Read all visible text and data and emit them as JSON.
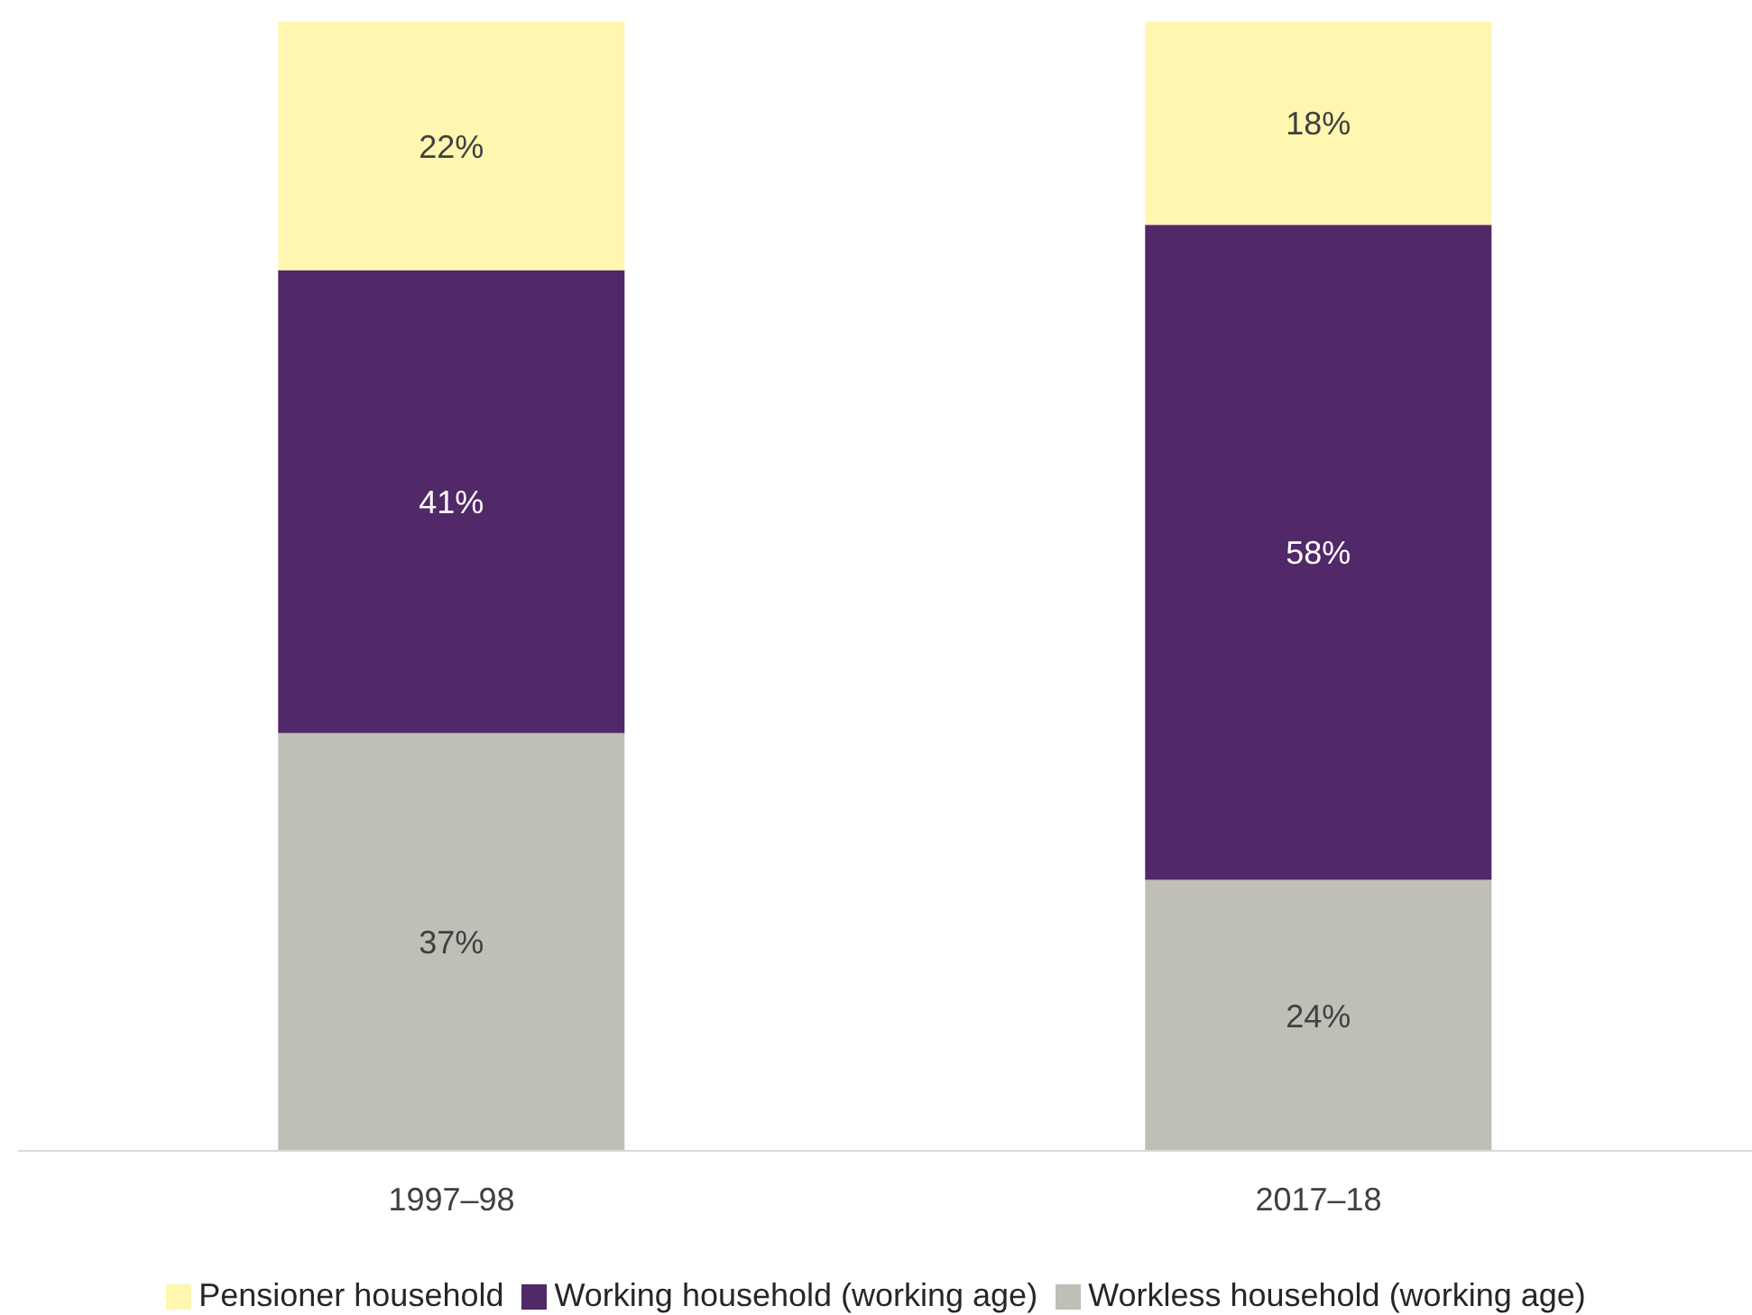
{
  "chart_data": {
    "type": "bar",
    "stacked": true,
    "categories": [
      "1997–98",
      "2017–18"
    ],
    "series": [
      {
        "name": "Workless household (working age)",
        "color": "#bfbfb7",
        "values": [
          37,
          24
        ],
        "value_labels": [
          "37%",
          "24%"
        ]
      },
      {
        "name": "Working household (working age)",
        "color": "#512868",
        "values": [
          41,
          58
        ],
        "value_labels": [
          "41%",
          "58%"
        ]
      },
      {
        "name": "Pensioner household",
        "color": "#fff6b0",
        "values": [
          22,
          18
        ],
        "value_labels": [
          "22%",
          "18%"
        ]
      }
    ],
    "ylim": [
      0,
      100
    ],
    "tick_labels": "x",
    "legend": "bottom"
  }
}
